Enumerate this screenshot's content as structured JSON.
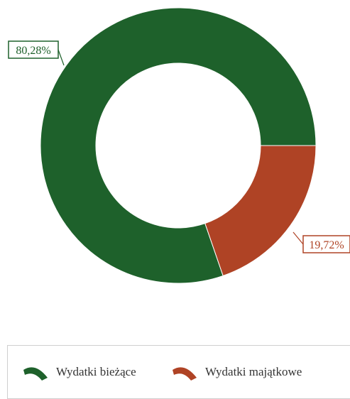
{
  "chart_data": {
    "type": "pie",
    "donut": true,
    "title": "",
    "categories": [
      "Wydatki bieżące",
      "Wydatki majątkowe"
    ],
    "values": [
      80.28,
      19.72
    ],
    "labels": [
      "80,28%",
      "19,72%"
    ],
    "colors": [
      "#1e612b",
      "#af4325"
    ],
    "legend_position": "bottom"
  },
  "legend": {
    "items": [
      {
        "label": "Wydatki bieżące",
        "color": "#1e612b",
        "icon": "arc-icon"
      },
      {
        "label": "Wydatki majątkowe",
        "color": "#af4325",
        "icon": "arc-icon"
      }
    ]
  }
}
